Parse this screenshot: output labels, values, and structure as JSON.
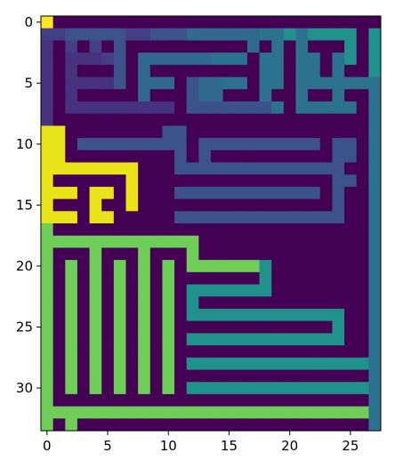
{
  "chart_data": {
    "type": "heatmap",
    "title": "",
    "xlabel": "",
    "ylabel": "",
    "xlim": [
      -0.5,
      27.5
    ],
    "ylim": [
      33.5,
      -0.5
    ],
    "xticks": [
      0,
      5,
      10,
      15,
      20,
      25
    ],
    "yticks": [
      0,
      5,
      10,
      15,
      20,
      25,
      30
    ],
    "colormap": "viridis",
    "wall_color": "#440154",
    "value_range": [
      0,
      1
    ],
    "grid": false,
    "description_note": "Maze grid: 0/dark cells are walls; lit cells are path cells colored by distance from the start at (0,0).",
    "grid_values": [
      "1000000000000000000000000000",
      "3344444334445555556676777707",
      "2030304000000000050606000707",
      "2022234055555566606606606707",
      "2020004050000000006606606007",
      "2022224055504556606606666666",
      "2020000050004550006006006006",
      "2022222222204444444606666606",
      "2000000000000000000000000006",
      "9900000000440000000000000006",
      "9904444444440444444444404406",
      "9900000000040400000000004406",
      "9999999900044444444444444006",
      "9000000900000000000000004406",
      "9990990900044444444444404006",
      "9000900900000000000000004006",
      "9990990000044444444444444006",
      "8000000000000000000000000006",
      "8888888888888000000000000006",
      "8000800080008000000000000006",
      "8080808080808888887000000006",
      "8080808080800000007000000006",
      "8080808080807777777000000006",
      "8080808080807000000000000006",
      "8080808080807777777777777006",
      "8080808080800000000000007006",
      "8080808080807777777777777006",
      "8080808080800000000000000006",
      "8080808080807777777777777776",
      "8080808080800000000000000006",
      "8080808080807777777777777776",
      "8000000000000000000000000006",
      "8888888888888888888888888886",
      "8080000000000000000000000006"
    ]
  }
}
